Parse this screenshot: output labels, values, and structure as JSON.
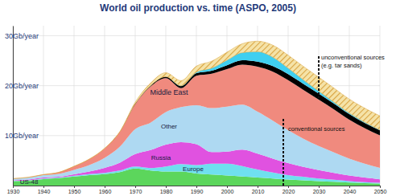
{
  "chart_data": {
    "type": "area",
    "stacked": true,
    "grid": true,
    "title": "World oil production vs. time (ASPO, 2005)",
    "x": [
      1930,
      1935,
      1940,
      1945,
      1950,
      1955,
      1960,
      1965,
      1970,
      1975,
      1980,
      1985,
      1990,
      1995,
      2000,
      2005,
      2010,
      2015,
      2020,
      2025,
      2030,
      2035,
      2040,
      2045,
      2050
    ],
    "xlim": [
      1930,
      2050
    ],
    "xticks": [
      1930,
      1940,
      1950,
      1960,
      1970,
      1980,
      1990,
      2000,
      2010,
      2020,
      2030,
      2040,
      2050
    ],
    "ylim": [
      0,
      32
    ],
    "yticks": [
      {
        "value": 10,
        "label": "10Gb/year"
      },
      {
        "value": 20,
        "label": "20Gb/year"
      },
      {
        "value": 30,
        "label": "30Gb/year"
      }
    ],
    "series": [
      {
        "name": "US-48",
        "color": "#5cd65c",
        "values": [
          0.9,
          1.0,
          1.3,
          1.5,
          1.8,
          2.1,
          2.3,
          2.7,
          3.4,
          3.0,
          2.8,
          2.8,
          2.4,
          2.2,
          2.0,
          1.8,
          1.6,
          1.4,
          1.2,
          1.05,
          0.9,
          0.75,
          0.6,
          0.5,
          0.4
        ]
      },
      {
        "name": "Europe",
        "color": "#6fe0ef",
        "values": [
          0.05,
          0.05,
          0.1,
          0.1,
          0.15,
          0.2,
          0.25,
          0.3,
          0.4,
          0.5,
          1.0,
          1.5,
          1.7,
          2.2,
          2.4,
          2.1,
          1.6,
          1.2,
          0.9,
          0.7,
          0.5,
          0.4,
          0.3,
          0.2,
          0.15
        ]
      },
      {
        "name": "Russia",
        "color": "#e052e0",
        "values": [
          0.1,
          0.15,
          0.2,
          0.15,
          0.3,
          0.5,
          1.0,
          1.6,
          2.5,
          3.6,
          4.4,
          4.4,
          4.2,
          2.3,
          2.4,
          3.3,
          3.2,
          2.8,
          2.4,
          2.0,
          1.7,
          1.4,
          1.1,
          0.9,
          0.7
        ]
      },
      {
        "name": "Other",
        "color": "#aed9f2",
        "values": [
          0.3,
          0.4,
          0.5,
          0.6,
          0.9,
          1.3,
          2.0,
          3.2,
          5.0,
          5.5,
          6.5,
          7.0,
          7.8,
          8.8,
          9.0,
          9.0,
          8.4,
          7.6,
          6.6,
          5.6,
          4.8,
          4.1,
          3.4,
          2.8,
          2.3
        ]
      },
      {
        "name": "Middle East",
        "color": "#f08a7e",
        "values": [
          0.05,
          0.05,
          0.1,
          0.3,
          0.7,
          1.2,
          1.9,
          3.0,
          5.0,
          7.2,
          6.8,
          3.8,
          5.9,
          6.9,
          7.5,
          8.0,
          9.0,
          9.8,
          10.0,
          9.8,
          9.3,
          8.6,
          7.8,
          7.1,
          6.5
        ]
      },
      {
        "color": "#000000",
        "values": [
          0,
          0,
          0,
          0,
          0,
          0,
          0,
          0,
          0.1,
          0.2,
          0.3,
          0.4,
          0.5,
          0.6,
          0.8,
          0.9,
          1.0,
          1.1,
          1.2,
          1.2,
          1.2,
          1.15,
          1.1,
          1.05,
          1.0
        ]
      },
      {
        "color": "#3fcff0",
        "values": [
          0,
          0,
          0,
          0,
          0,
          0,
          0,
          0,
          0,
          0,
          0,
          0.1,
          0.2,
          0.5,
          1.0,
          1.5,
          2.0,
          1.8,
          1.2,
          0.8,
          0.5,
          0.3,
          0.2,
          0.15,
          0.1
        ]
      },
      {
        "color": "#d9a441",
        "values": [
          0,
          0,
          0,
          0,
          0,
          0,
          0,
          0,
          0.3,
          0.5,
          0.8,
          1.0,
          1.2,
          1.4,
          1.6,
          1.8,
          2.1,
          2.4,
          2.6,
          2.7,
          2.8,
          2.8,
          2.8,
          2.8,
          2.8
        ]
      }
    ],
    "annotations": [
      {
        "text": [
          "unconventional sources",
          "(e.g. tar sands)"
        ]
      },
      {
        "text": "conventional sources"
      }
    ]
  }
}
